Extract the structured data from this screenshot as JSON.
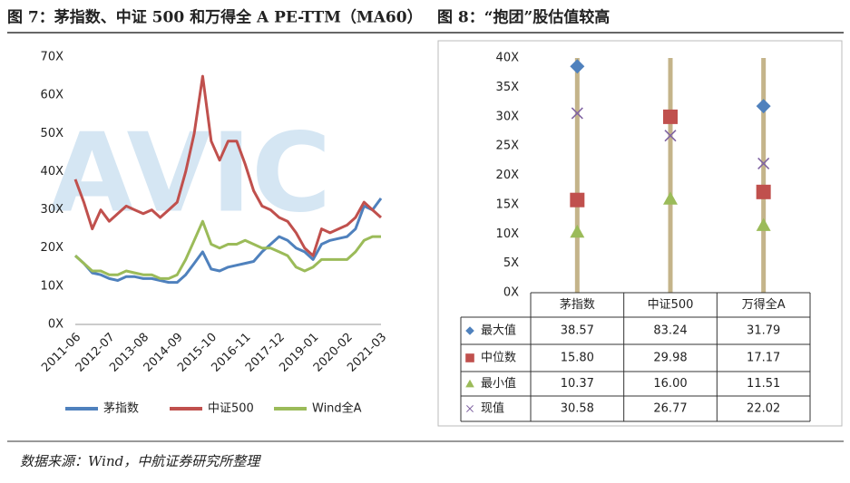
{
  "watermark": "AVIC",
  "source": "数据来源：Wind，中航证券研究所整理",
  "chart_data": [
    {
      "type": "line",
      "title": "图 7：茅指数、中证 500 和万得全 A PE-TTM（MA60）",
      "categories": [
        "2011-06",
        null,
        null,
        null,
        "2012-07",
        null,
        null,
        null,
        "2013-08",
        null,
        null,
        null,
        "2014-09",
        null,
        null,
        null,
        "2015-10",
        null,
        null,
        null,
        "2016-11",
        null,
        null,
        null,
        "2017-12",
        null,
        null,
        null,
        "2019-01",
        null,
        null,
        null,
        "2020-02",
        null,
        null,
        null,
        "2021-03"
      ],
      "ylim": [
        0,
        70
      ],
      "yticks": [
        {
          "value": 0,
          "label": "0X"
        },
        {
          "value": 10,
          "label": "10X"
        },
        {
          "value": 20,
          "label": "20X"
        },
        {
          "value": 30,
          "label": "30X"
        },
        {
          "value": 40,
          "label": "40X"
        },
        {
          "value": 50,
          "label": "50X"
        },
        {
          "value": 60,
          "label": "60X"
        },
        {
          "value": 70,
          "label": "70X"
        }
      ],
      "series": [
        {
          "name": "茅指数",
          "color": "#4f81bd",
          "values": [
            18,
            16,
            13.5,
            13,
            12,
            11.5,
            12.5,
            12.5,
            12,
            12,
            11.5,
            11,
            11,
            13,
            16,
            19,
            14.5,
            14,
            15,
            15.5,
            16,
            16.5,
            19,
            21,
            23,
            22,
            20,
            19,
            17,
            21,
            22,
            22.5,
            23,
            25,
            31,
            30,
            33
          ]
        },
        {
          "name": "中证500",
          "color": "#c0504d",
          "values": [
            38,
            32,
            25,
            30,
            27,
            29,
            31,
            30,
            29,
            30,
            28,
            30,
            32,
            40,
            50,
            65,
            48,
            43,
            48,
            48,
            42,
            35,
            31,
            30,
            28,
            27,
            24,
            20,
            18,
            25,
            24,
            25,
            26,
            28,
            32,
            30,
            28
          ]
        },
        {
          "name": "Wind全A",
          "color": "#9bbb59",
          "values": [
            18,
            16,
            14,
            14,
            13,
            13,
            14,
            13.5,
            13,
            13,
            12,
            12,
            13,
            17,
            22,
            27,
            21,
            20,
            21,
            21,
            22,
            21,
            20,
            20,
            19,
            18,
            15,
            14,
            15,
            17,
            17,
            17,
            17,
            19,
            22,
            23,
            23
          ]
        }
      ]
    },
    {
      "type": "dot",
      "title": "图 8：“抱团”股估值较高",
      "categories": [
        "茅指数",
        "中证500",
        "万得全A"
      ],
      "ylim": [
        0,
        40
      ],
      "yticks": [
        {
          "value": 0,
          "label": "0X"
        },
        {
          "value": 5,
          "label": "5X"
        },
        {
          "value": 10,
          "label": "10X"
        },
        {
          "value": 15,
          "label": "15X"
        },
        {
          "value": 20,
          "label": "20X"
        },
        {
          "value": 25,
          "label": "25X"
        },
        {
          "value": 30,
          "label": "30X"
        },
        {
          "value": 35,
          "label": "35X"
        },
        {
          "value": 40,
          "label": "40X"
        }
      ],
      "series": [
        {
          "name": "最大值",
          "color": "#4f81bd",
          "marker": "diamond",
          "values": [
            38.57,
            83.24,
            31.79
          ],
          "value_labels": [
            "38.57",
            "83.24",
            "31.79"
          ]
        },
        {
          "name": "中位数",
          "color": "#c0504d",
          "marker": "square",
          "values": [
            15.8,
            29.98,
            17.17
          ],
          "value_labels": [
            "15.80",
            "29.98",
            "17.17"
          ]
        },
        {
          "name": "最小值",
          "color": "#9bbb59",
          "marker": "triangle",
          "values": [
            10.37,
            16,
            11.51
          ],
          "value_labels": [
            "10.37",
            "16.00",
            "11.51"
          ]
        },
        {
          "name": "现值",
          "color": "#8064a2",
          "marker": "cross",
          "values": [
            30.58,
            26.77,
            22.02
          ],
          "value_labels": [
            "30.58",
            "26.77",
            "22.02"
          ]
        }
      ]
    }
  ]
}
